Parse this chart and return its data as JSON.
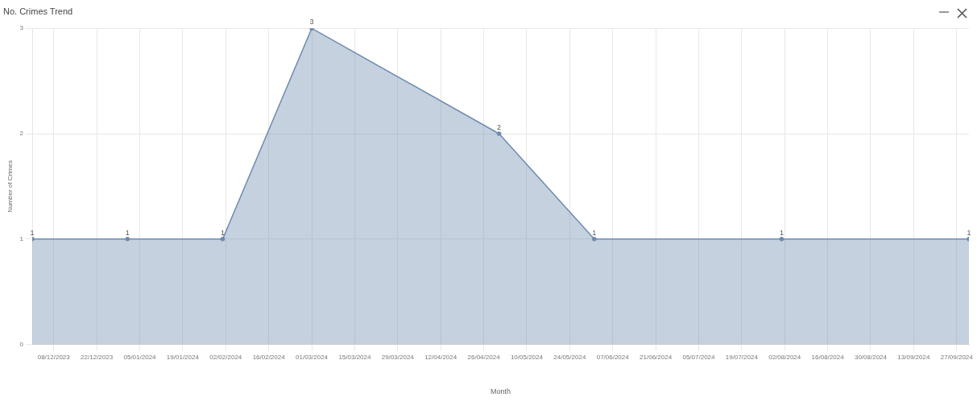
{
  "chart_data": {
    "type": "area",
    "title": "No. Crimes Trend",
    "xlabel": "Month",
    "ylabel": "Number of Crimes",
    "x": [
      "2023-12-01",
      "2024-01-01",
      "2024-02-01",
      "2024-03-01",
      "2024-05-01",
      "2024-06-01",
      "2024-08-01",
      "2024-10-01"
    ],
    "series": [
      {
        "color": "#6d8bb0",
        "values": [
          1,
          1,
          1,
          3,
          2,
          1,
          1,
          1
        ]
      }
    ],
    "xlim": [
      "2023-12-01",
      "2024-10-01"
    ],
    "xticks": [
      {
        "value": "2023-12-08",
        "label": "08/12/2023"
      },
      {
        "value": "2023-12-22",
        "label": "22/12/2023"
      },
      {
        "value": "2024-01-05",
        "label": "05/01/2024"
      },
      {
        "value": "2024-01-19",
        "label": "19/01/2024"
      },
      {
        "value": "2024-02-02",
        "label": "02/02/2024"
      },
      {
        "value": "2024-02-16",
        "label": "16/02/2024"
      },
      {
        "value": "2024-03-01",
        "label": "01/03/2024"
      },
      {
        "value": "2024-03-15",
        "label": "15/03/2024"
      },
      {
        "value": "2024-03-29",
        "label": "29/03/2024"
      },
      {
        "value": "2024-04-12",
        "label": "12/04/2024"
      },
      {
        "value": "2024-04-26",
        "label": "26/04/2024"
      },
      {
        "value": "2024-05-10",
        "label": "10/05/2024"
      },
      {
        "value": "2024-05-24",
        "label": "24/05/2024"
      },
      {
        "value": "2024-06-07",
        "label": "07/06/2024"
      },
      {
        "value": "2024-06-21",
        "label": "21/06/2024"
      },
      {
        "value": "2024-07-05",
        "label": "05/07/2024"
      },
      {
        "value": "2024-07-19",
        "label": "19/07/2024"
      },
      {
        "value": "2024-08-02",
        "label": "02/08/2024"
      },
      {
        "value": "2024-08-16",
        "label": "16/08/2024"
      },
      {
        "value": "2024-08-30",
        "label": "30/08/2024"
      },
      {
        "value": "2024-09-13",
        "label": "13/09/2024"
      },
      {
        "value": "2024-09-27",
        "label": "27/09/2024"
      }
    ],
    "ylim": [
      0,
      3
    ],
    "yticks": [
      0,
      1,
      2,
      3
    ],
    "grid": true,
    "marker": "circle",
    "data_labels": true
  }
}
